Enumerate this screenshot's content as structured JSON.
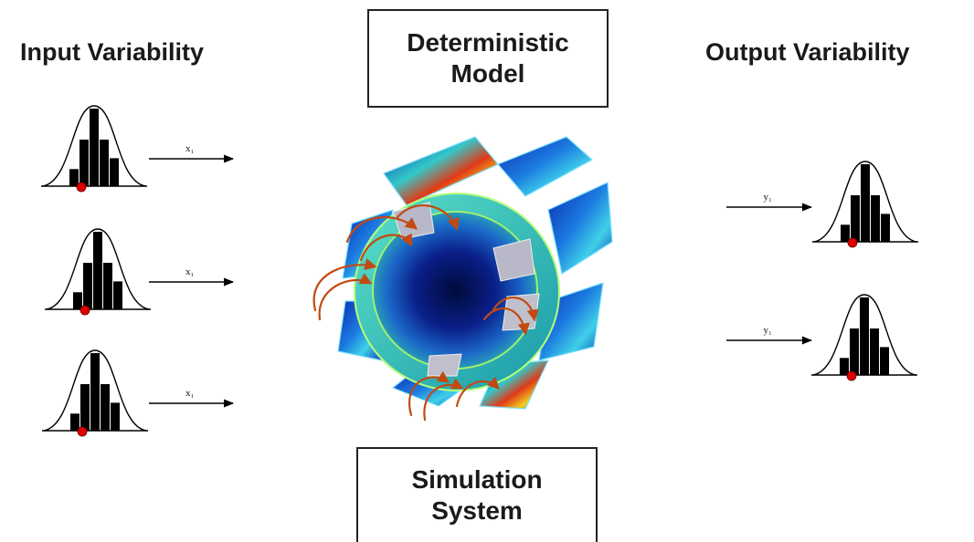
{
  "left_heading": "Input Variability",
  "right_heading": "Output Variability",
  "top_box": {
    "line1": "Deterministic",
    "line2": "Model"
  },
  "bottom_box": {
    "line1": "Simulation",
    "line2": "System"
  },
  "inputs": [
    {
      "label": "x₁"
    },
    {
      "label": "x₁"
    },
    {
      "label": "x₁"
    }
  ],
  "outputs": [
    {
      "label": "y₁"
    },
    {
      "label": "y₁"
    }
  ],
  "histogram_bars": [
    0.22,
    0.6,
    1.0,
    0.6,
    0.36
  ],
  "colors": {
    "marker": "#e00000",
    "bar": "#000000",
    "arrow": "#000000"
  },
  "icons": [
    "bell-curve-histogram-icon",
    "arrow-right-icon",
    "rotor-stator-3d-model-image"
  ]
}
